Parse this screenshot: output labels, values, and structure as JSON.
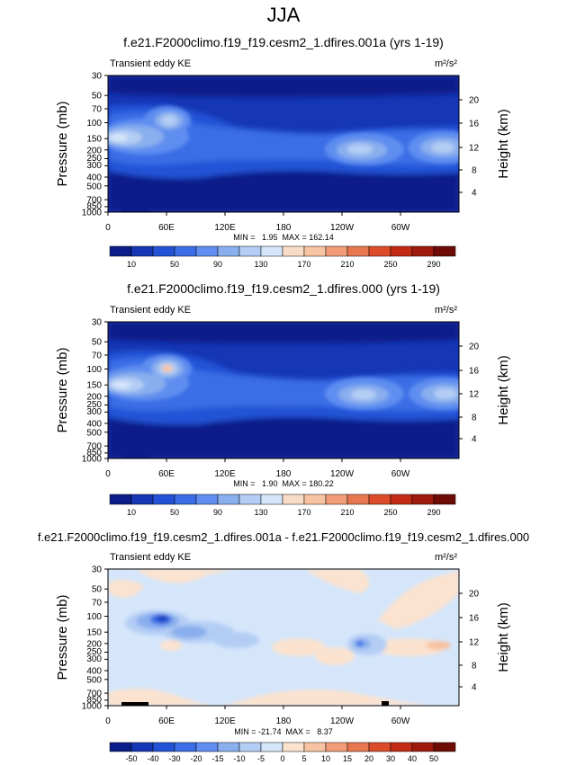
{
  "figure": {
    "title": "JJA"
  },
  "panels": [
    {
      "title": "f.e21.F2000climo.f19_f19.cesm2_1.dfires.001a (yrs 1-19)",
      "left_label": "Transient eddy KE",
      "units": "m²/s²",
      "stats": "MIN =   1.95  MAX = 162.14"
    },
    {
      "title": "f.e21.F2000climo.f19_f19.cesm2_1.dfires.000 (yrs 1-19)",
      "left_label": "Transient eddy KE",
      "units": "m²/s²",
      "stats": "MIN =   1.90  MAX = 180.22"
    },
    {
      "title": "f.e21.F2000climo.f19_f19.cesm2_1.dfires.001a - f.e21.F2000climo.f19_f19.cesm2_1.dfires.000",
      "left_label": "Transient eddy KE",
      "units": "m²/s²",
      "stats": "MIN = -21.74  MAX =   8.37"
    }
  ],
  "chart_data": [
    {
      "type": "heatmap",
      "title": "f.e21.F2000climo.f19_f19.cesm2_1.dfires.001a (yrs 1-19)",
      "subtitle": "Transient eddy KE",
      "units": "m²/s²",
      "ylabel": "Pressure (mb)",
      "ylabel_right": "Height (km)",
      "x_ticks": [
        "0",
        "60E",
        "120E",
        "180",
        "120W",
        "60W"
      ],
      "y_ticks": [
        "30",
        "50",
        "70",
        "100",
        "150",
        "200",
        "250",
        "300",
        "400",
        "500",
        "700",
        "850",
        "1000"
      ],
      "y_right_ticks": [
        "4",
        "8",
        "12",
        "16",
        "20"
      ],
      "ylim": [
        1000,
        30
      ],
      "y_scale": "log",
      "min": 1.95,
      "max": 162.14,
      "levels": [
        10,
        30,
        50,
        70,
        90,
        110,
        130,
        150,
        170,
        190,
        210,
        230,
        250,
        270,
        290
      ],
      "colorbar_labels": [
        "10",
        "50",
        "90",
        "130",
        "170",
        "210",
        "250",
        "290"
      ],
      "colors": [
        "#0a1d8a",
        "#1536b5",
        "#2352d6",
        "#3a6de6",
        "#5f8ef0",
        "#8aafee",
        "#b4cdf4",
        "#d5e6fb",
        "#f8dcc5",
        "#f7c3a2",
        "#f29d78",
        "#e8764f",
        "#dc4c2a",
        "#c22a15",
        "#9e1a0c",
        "#6e0b05"
      ],
      "features": [
        {
          "lon": 10,
          "p": 160,
          "value": 162
        },
        {
          "lon": 58,
          "p": 100,
          "value": 140
        },
        {
          "lon": 240,
          "p": 210,
          "value": 150
        },
        {
          "lon": 330,
          "p": 200,
          "value": 155
        }
      ]
    },
    {
      "type": "heatmap",
      "title": "f.e21.F2000climo.f19_f19.cesm2_1.dfires.000 (yrs 1-19)",
      "subtitle": "Transient eddy KE",
      "units": "m²/s²",
      "ylabel": "Pressure (mb)",
      "ylabel_right": "Height (km)",
      "x_ticks": [
        "0",
        "60E",
        "120E",
        "180",
        "120W",
        "60W"
      ],
      "y_ticks": [
        "30",
        "50",
        "70",
        "100",
        "150",
        "200",
        "250",
        "300",
        "400",
        "500",
        "700",
        "850",
        "1000"
      ],
      "y_right_ticks": [
        "4",
        "8",
        "12",
        "16",
        "20"
      ],
      "ylim": [
        1000,
        30
      ],
      "y_scale": "log",
      "min": 1.9,
      "max": 180.22,
      "levels": [
        10,
        30,
        50,
        70,
        90,
        110,
        130,
        150,
        170,
        190,
        210,
        230,
        250,
        270,
        290
      ],
      "colorbar_labels": [
        "10",
        "50",
        "90",
        "130",
        "170",
        "210",
        "250",
        "290"
      ],
      "colors": [
        "#0a1d8a",
        "#1536b5",
        "#2352d6",
        "#3a6de6",
        "#5f8ef0",
        "#8aafee",
        "#b4cdf4",
        "#d5e6fb",
        "#f8dcc5",
        "#f7c3a2",
        "#f29d78",
        "#e8764f",
        "#dc4c2a",
        "#c22a15",
        "#9e1a0c",
        "#6e0b05"
      ],
      "features": [
        {
          "lon": 10,
          "p": 150,
          "value": 160
        },
        {
          "lon": 58,
          "p": 100,
          "value": 180
        },
        {
          "lon": 245,
          "p": 200,
          "value": 150
        },
        {
          "lon": 335,
          "p": 200,
          "value": 150
        }
      ]
    },
    {
      "type": "heatmap",
      "title": "f.e21.F2000climo.f19_f19.cesm2_1.dfires.001a - f.e21.F2000climo.f19_f19.cesm2_1.dfires.000",
      "subtitle": "Transient eddy KE",
      "units": "m²/s²",
      "ylabel": "Pressure (mb)",
      "ylabel_right": "Height (km)",
      "x_ticks": [
        "0",
        "60E",
        "120E",
        "180",
        "120W",
        "60W"
      ],
      "y_ticks": [
        "30",
        "50",
        "70",
        "100",
        "150",
        "200",
        "250",
        "300",
        "400",
        "500",
        "700",
        "850",
        "1000"
      ],
      "y_right_ticks": [
        "4",
        "8",
        "12",
        "16",
        "20"
      ],
      "ylim": [
        1000,
        30
      ],
      "y_scale": "log",
      "min": -21.74,
      "max": 8.37,
      "levels": [
        -50,
        -40,
        -30,
        -20,
        -15,
        -10,
        -5,
        0,
        5,
        10,
        15,
        20,
        30,
        40,
        50
      ],
      "colorbar_labels": [
        "-50",
        "-40",
        "-30",
        "-20",
        "-15",
        "-10",
        "-5",
        "0",
        "5",
        "10",
        "15",
        "20",
        "30",
        "40",
        "50"
      ],
      "colors": [
        "#0a1d8a",
        "#1536b5",
        "#2352d6",
        "#3a6de6",
        "#5f8ef0",
        "#8aafee",
        "#b4cdf4",
        "#d5e6fb",
        "#fbe3cf",
        "#f7c3a2",
        "#f29d78",
        "#e8764f",
        "#dc4c2a",
        "#c22a15",
        "#9e1a0c",
        "#6e0b05"
      ],
      "features": [
        {
          "lon": 55,
          "p": 100,
          "value": -21.7
        },
        {
          "lon": 242,
          "p": 200,
          "value": -11
        },
        {
          "lon": 325,
          "p": 200,
          "value": 8.4
        }
      ]
    }
  ]
}
